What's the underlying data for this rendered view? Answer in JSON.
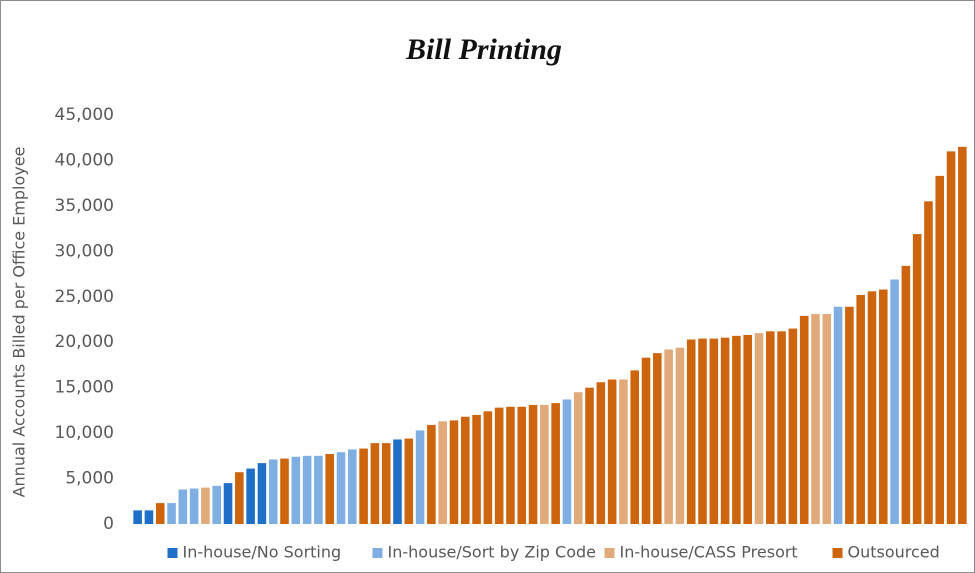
{
  "chart_data": {
    "type": "bar",
    "title": "Bill Printing",
    "y_label": "Annual Accounts Billed per Office Employee",
    "categories": [
      null,
      null,
      null,
      null,
      null,
      null,
      null,
      null,
      null,
      null,
      null,
      null,
      null,
      null,
      null,
      null,
      null,
      null,
      null,
      null,
      null,
      null,
      null,
      null,
      null,
      null,
      null,
      null,
      null,
      null,
      null,
      null,
      null,
      null,
      null,
      null,
      null,
      null,
      null,
      null,
      null,
      null,
      null,
      null,
      null,
      null,
      null,
      null,
      null,
      null,
      null,
      null,
      null,
      null,
      null,
      null,
      null,
      null,
      null,
      null,
      null,
      null,
      null,
      null,
      null,
      null,
      null,
      null,
      null,
      null,
      null,
      null,
      null,
      null
    ],
    "series": [
      {
        "name": "In-house/No Sorting",
        "color": "#1f6fc6",
        "values": [
          1500,
          1500,
          null,
          null,
          null,
          null,
          null,
          null,
          4500,
          null,
          6100,
          6700,
          null,
          null,
          null,
          null,
          null,
          null,
          null,
          null,
          null,
          null,
          null,
          9300,
          null,
          null,
          null,
          null,
          null,
          null,
          null,
          null,
          null,
          null,
          null,
          null,
          null,
          null,
          null,
          null,
          null,
          null,
          null,
          null,
          null,
          null,
          null,
          null,
          null,
          null,
          null,
          null,
          null,
          null,
          null,
          null,
          null,
          null,
          null,
          null,
          null,
          null,
          null,
          null,
          null,
          null,
          null,
          null,
          null,
          null,
          null,
          null,
          null,
          null
        ]
      },
      {
        "name": "In-house/Sort by Zip Code",
        "color": "#7eaee2",
        "values": [
          null,
          null,
          null,
          2300,
          3800,
          3900,
          null,
          4200,
          null,
          null,
          null,
          null,
          7100,
          null,
          7400,
          7500,
          7500,
          null,
          7900,
          8200,
          null,
          null,
          null,
          null,
          null,
          10300,
          null,
          null,
          null,
          null,
          null,
          null,
          null,
          null,
          null,
          null,
          null,
          null,
          13700,
          null,
          null,
          null,
          null,
          null,
          null,
          null,
          null,
          null,
          null,
          null,
          null,
          null,
          null,
          null,
          null,
          null,
          null,
          null,
          null,
          null,
          null,
          null,
          23900,
          null,
          null,
          null,
          null,
          26900,
          null,
          null,
          null,
          null,
          null,
          null
        ]
      },
      {
        "name": "In-house/CASS Presort",
        "color": "#e1aa7b",
        "values": [
          null,
          null,
          null,
          null,
          null,
          null,
          4000,
          null,
          null,
          null,
          null,
          null,
          null,
          null,
          null,
          null,
          null,
          null,
          null,
          null,
          null,
          null,
          null,
          null,
          null,
          null,
          null,
          11300,
          null,
          null,
          null,
          null,
          null,
          null,
          null,
          null,
          13100,
          null,
          null,
          14500,
          null,
          null,
          null,
          15900,
          null,
          null,
          null,
          19200,
          19400,
          null,
          null,
          null,
          null,
          null,
          null,
          21000,
          null,
          null,
          null,
          null,
          23100,
          23100,
          null,
          null,
          null,
          null,
          null,
          null,
          null,
          null,
          null,
          null,
          null,
          null
        ]
      },
      {
        "name": "Outsourced",
        "color": "#cc650e",
        "values": [
          null,
          null,
          2300,
          null,
          null,
          null,
          null,
          null,
          null,
          5700,
          null,
          null,
          null,
          7200,
          null,
          null,
          null,
          7700,
          null,
          null,
          8300,
          8900,
          8900,
          null,
          9400,
          null,
          10900,
          null,
          11400,
          11800,
          12000,
          12400,
          12800,
          12900,
          12900,
          13100,
          null,
          13300,
          null,
          null,
          15000,
          15600,
          15900,
          null,
          16900,
          18300,
          18800,
          null,
          null,
          20300,
          20400,
          20400,
          20500,
          20700,
          20800,
          null,
          21200,
          21200,
          21500,
          22900,
          null,
          null,
          null,
          23900,
          25200,
          25600,
          25800,
          null,
          28400,
          31900,
          35500,
          38300,
          41000,
          41500
        ]
      }
    ],
    "ylim": [
      0,
      45000
    ],
    "yticks": [
      0,
      {
        "value": 5000,
        "label": "5,000"
      },
      {
        "value": 10000,
        "label": "10,000"
      },
      {
        "value": 15000,
        "label": "15,000"
      },
      {
        "value": 20000,
        "label": "20,000"
      },
      {
        "value": 25000,
        "label": "25,000"
      },
      {
        "value": 30000,
        "label": "30,000"
      },
      {
        "value": 35000,
        "label": "35,000"
      },
      {
        "value": 40000,
        "label": "40,000"
      },
      {
        "value": 45000,
        "label": "45,000"
      }
    ],
    "grid": false,
    "legend": "bottom"
  }
}
